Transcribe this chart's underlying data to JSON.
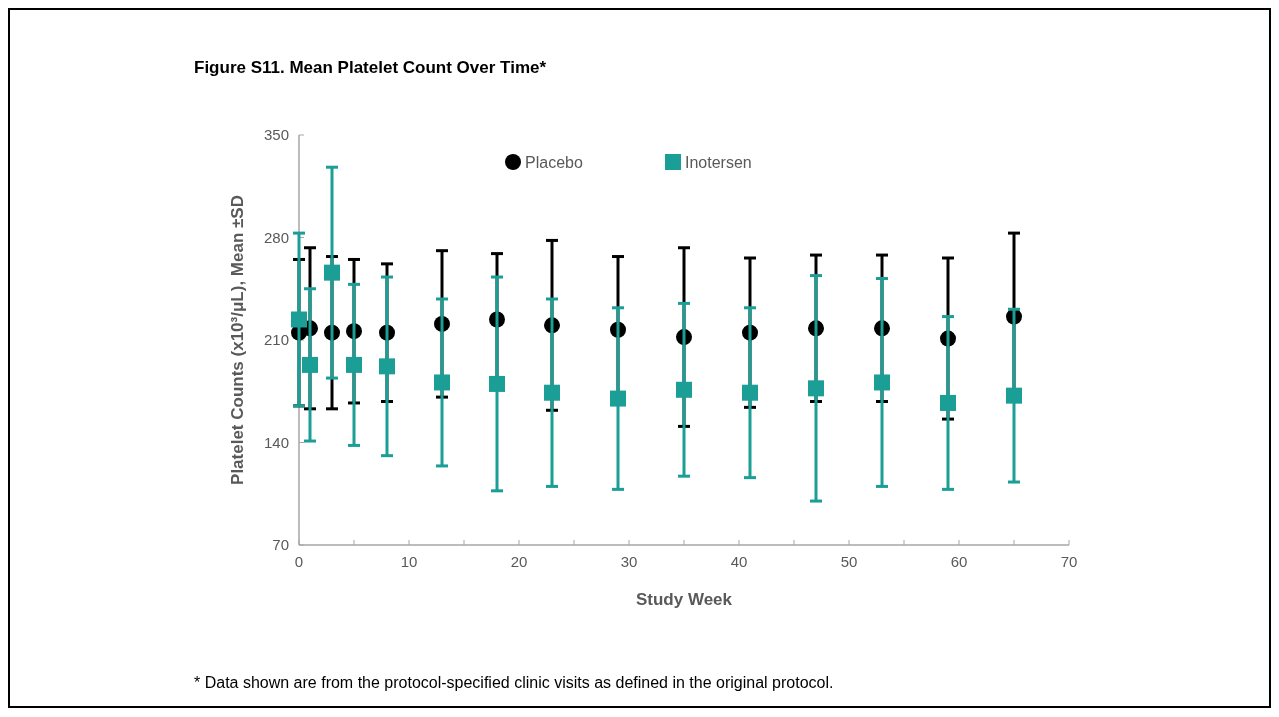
{
  "chart_data": {
    "type": "scatter",
    "title": "Figure S11. Mean Platelet Count Over Time*",
    "xlabel": "Study Week",
    "ylabel": "Platelet Counts (x10³/μL), Mean ±SD",
    "annotations": [
      "* Data shown are from the protocol-specified clinic visits as defined in the original protocol."
    ],
    "x": [
      0,
      1,
      3,
      5,
      8,
      13,
      18,
      23,
      29,
      35,
      41,
      47,
      53,
      59,
      65
    ],
    "series": [
      {
        "name": "Placebo",
        "color": "#000000",
        "marker": "circle",
        "values": [
          215,
          218,
          215,
          216,
          215,
          221,
          224,
          220,
          217,
          212,
          215,
          218,
          218,
          211,
          226
        ],
        "errors": [
          50,
          55,
          52,
          49,
          47,
          50,
          45,
          58,
          50,
          61,
          51,
          50,
          50,
          55,
          57
        ]
      },
      {
        "name": "Inotersen",
        "color": "#1a9e96",
        "marker": "square",
        "values": [
          224,
          193,
          256,
          193,
          192,
          181,
          180,
          174,
          170,
          176,
          174,
          177,
          181,
          167,
          172
        ],
        "errors": [
          59,
          52,
          72,
          55,
          61,
          57,
          73,
          64,
          62,
          59,
          58,
          77,
          71,
          59,
          59
        ]
      }
    ],
    "xlim": [
      0,
      70
    ],
    "xticks": [
      0,
      {
        "value": 5,
        "label": null
      },
      10,
      {
        "value": 15,
        "label": null
      },
      20,
      {
        "value": 25,
        "label": null
      },
      30,
      {
        "value": 35,
        "label": null
      },
      40,
      {
        "value": 45,
        "label": null
      },
      50,
      {
        "value": 55,
        "label": null
      },
      60,
      {
        "value": 65,
        "label": null
      },
      70
    ],
    "ylim": [
      70,
      350
    ],
    "yticks": [
      70,
      140,
      210,
      280,
      350
    ],
    "grid": false,
    "legend": "top"
  }
}
